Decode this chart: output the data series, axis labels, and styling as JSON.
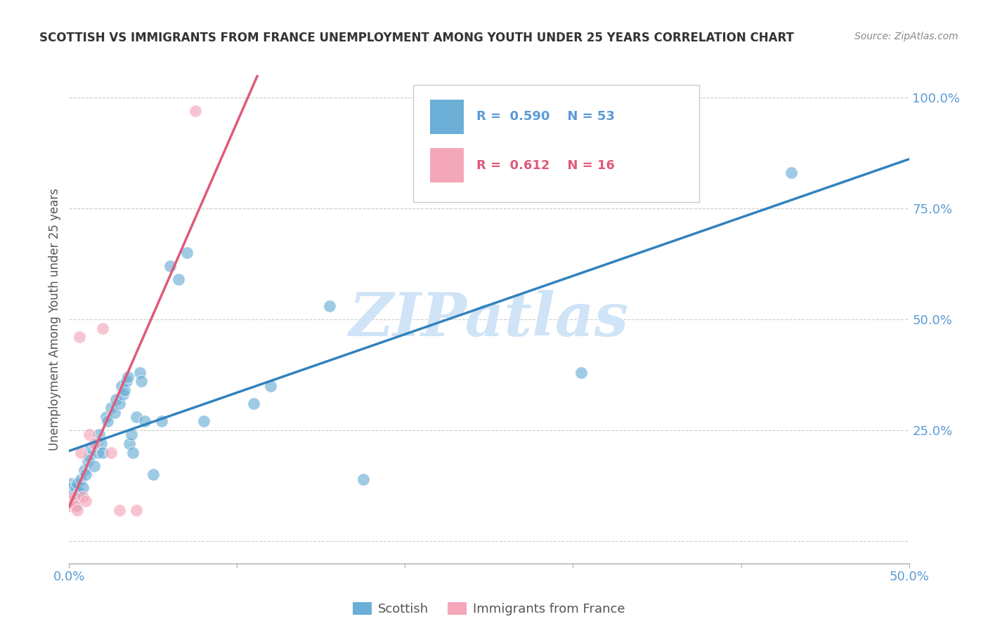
{
  "title": "SCOTTISH VS IMMIGRANTS FROM FRANCE UNEMPLOYMENT AMONG YOUTH UNDER 25 YEARS CORRELATION CHART",
  "source": "Source: ZipAtlas.com",
  "ylabel": "Unemployment Among Youth under 25 years",
  "xlim": [
    0.0,
    0.5
  ],
  "ylim": [
    -0.05,
    1.05
  ],
  "blue_color": "#6baed6",
  "pink_color": "#f4a7b9",
  "blue_line_color": "#3182bd",
  "pink_line_color": "#e05a7a",
  "pink_dashed_color": "#cccccc",
  "grid_color": "#cccccc",
  "watermark_color": "#d0e4f7",
  "R_blue": 0.59,
  "N_blue": 53,
  "R_pink": 0.612,
  "N_pink": 16,
  "scottish_x": [
    0.001,
    0.002,
    0.002,
    0.003,
    0.003,
    0.004,
    0.004,
    0.005,
    0.005,
    0.006,
    0.007,
    0.008,
    0.009,
    0.01,
    0.011,
    0.012,
    0.013,
    0.015,
    0.016,
    0.017,
    0.018,
    0.019,
    0.02,
    0.022,
    0.023,
    0.025,
    0.027,
    0.028,
    0.03,
    0.031,
    0.032,
    0.033,
    0.034,
    0.035,
    0.036,
    0.037,
    0.038,
    0.04,
    0.042,
    0.043,
    0.045,
    0.05,
    0.055,
    0.06,
    0.065,
    0.07,
    0.08,
    0.11,
    0.12,
    0.155,
    0.175,
    0.305,
    0.43
  ],
  "scottish_y": [
    0.13,
    0.12,
    0.1,
    0.11,
    0.09,
    0.12,
    0.08,
    0.13,
    0.1,
    0.11,
    0.14,
    0.12,
    0.16,
    0.15,
    0.18,
    0.19,
    0.21,
    0.17,
    0.22,
    0.2,
    0.24,
    0.22,
    0.2,
    0.28,
    0.27,
    0.3,
    0.29,
    0.32,
    0.31,
    0.35,
    0.33,
    0.34,
    0.36,
    0.37,
    0.22,
    0.24,
    0.2,
    0.28,
    0.38,
    0.36,
    0.27,
    0.15,
    0.27,
    0.62,
    0.59,
    0.65,
    0.27,
    0.31,
    0.35,
    0.53,
    0.14,
    0.38,
    0.83
  ],
  "france_x": [
    0.001,
    0.002,
    0.003,
    0.004,
    0.005,
    0.006,
    0.007,
    0.008,
    0.01,
    0.012,
    0.015,
    0.02,
    0.025,
    0.03,
    0.04,
    0.075
  ],
  "france_y": [
    0.08,
    0.09,
    0.1,
    0.08,
    0.07,
    0.46,
    0.2,
    0.1,
    0.09,
    0.24,
    0.22,
    0.48,
    0.2,
    0.07,
    0.07,
    0.97
  ]
}
